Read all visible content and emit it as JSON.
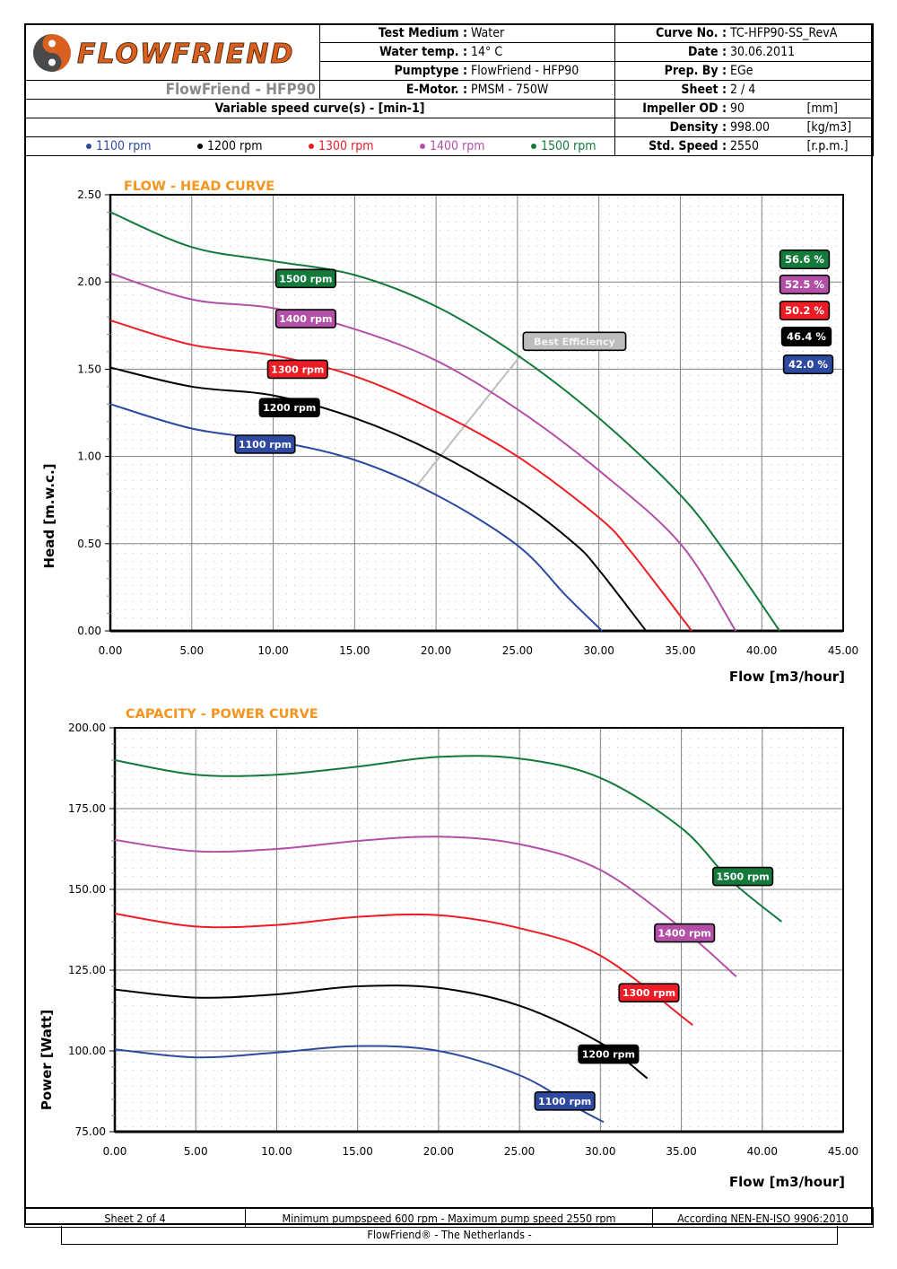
{
  "header": {
    "brand": "FLOWFRIEND",
    "model_name": "FlowFriend - HFP90",
    "test_medium_label": "Test Medium :",
    "test_medium_value": "Water",
    "water_temp_label": "Water temp. :",
    "water_temp_value": "14° C",
    "pumptype_label": "Pumptype :",
    "pumptype_value": "FlowFriend - HFP90",
    "emotor_label": "E-Motor. :",
    "emotor_value": "PMSM - 750W",
    "curve_no_label": "Curve No. :",
    "curve_no_value": "TC-HFP90-SS_RevA",
    "date_label": "Date :",
    "date_value": "30.06.2011",
    "prep_by_label": "Prep. By :",
    "prep_by_value": "EGe",
    "sheet_label": "Sheet :",
    "sheet_value": "2 / 4",
    "variable_speed_label": "Variable speed curve(s) -  [min-1]",
    "impeller_label": "Impeller OD :",
    "impeller_value": "90",
    "impeller_unit": "[mm]",
    "density_label": "Density :",
    "density_value": "998.00",
    "density_unit": "[kg/m3]",
    "std_speed_label": "Std. Speed :",
    "std_speed_value": "2550",
    "std_speed_unit": "[r.p.m.]",
    "legend": [
      {
        "label": "1100 rpm",
        "color": "#2e4aa0"
      },
      {
        "label": "1200 rpm",
        "color": "#000000"
      },
      {
        "label": "1300 rpm",
        "color": "#ee1c24"
      },
      {
        "label": "1400 rpm",
        "color": "#b44fa8"
      },
      {
        "label": "1500 rpm",
        "color": "#137a3c"
      }
    ]
  },
  "colors": {
    "title_orange": "#f7941d",
    "best_eff_gray": "#bdbdbd",
    "grid": "#808080"
  },
  "chart_data": [
    {
      "type": "line",
      "title": "FLOW - HEAD CURVE",
      "xlabel": "Flow [m3/hour]",
      "ylabel": "Head [m.w.c.]",
      "xlim": [
        0,
        45
      ],
      "ylim": [
        0,
        2.5
      ],
      "xticks": [
        0,
        5,
        10,
        15,
        20,
        25,
        30,
        35,
        40,
        45
      ],
      "xtick_labels": [
        "0.00",
        "5.00",
        "10.00",
        "15.00",
        "20.00",
        "25.00",
        "30.00",
        "35.00",
        "40.00",
        "45.00"
      ],
      "yticks": [
        0,
        0.5,
        1.0,
        1.5,
        2.0,
        2.5
      ],
      "ytick_labels": [
        "0.00",
        "0.50",
        "1.00",
        "1.50",
        "2.00",
        "2.50"
      ],
      "grid": true,
      "series": [
        {
          "name": "1500 rpm",
          "color": "#137a3c",
          "label_at": [
            12.0,
            2.02
          ],
          "x": [
            0,
            5,
            10,
            15,
            20,
            25,
            30,
            35,
            38,
            41.1
          ],
          "y": [
            2.4,
            2.2,
            2.12,
            2.04,
            1.86,
            1.58,
            1.22,
            0.78,
            0.42,
            0
          ]
        },
        {
          "name": "1400 rpm",
          "color": "#b44fa8",
          "label_at": [
            12.0,
            1.79
          ],
          "x": [
            0,
            5,
            10,
            15,
            20,
            25,
            30,
            35,
            38.4
          ],
          "y": [
            2.05,
            1.9,
            1.85,
            1.73,
            1.55,
            1.27,
            0.92,
            0.5,
            0
          ]
        },
        {
          "name": "1300 rpm",
          "color": "#ee1c24",
          "label_at": [
            11.5,
            1.5
          ],
          "x": [
            0,
            5,
            10,
            15,
            20,
            25,
            30,
            32,
            35.7
          ],
          "y": [
            1.78,
            1.64,
            1.58,
            1.46,
            1.26,
            1.0,
            0.65,
            0.45,
            0
          ]
        },
        {
          "name": "1200 rpm",
          "color": "#000000",
          "label_at": [
            11.0,
            1.28
          ],
          "x": [
            0,
            5,
            10,
            15,
            20,
            25,
            28.5,
            30,
            32.9
          ],
          "y": [
            1.51,
            1.4,
            1.35,
            1.22,
            1.02,
            0.75,
            0.5,
            0.35,
            0
          ]
        },
        {
          "name": "1100 rpm",
          "color": "#2e4aa0",
          "label_at": [
            9.5,
            1.07
          ],
          "x": [
            0,
            5,
            10,
            15,
            20,
            25,
            28,
            30.2
          ],
          "y": [
            1.3,
            1.16,
            1.09,
            0.98,
            0.78,
            0.49,
            0.2,
            0
          ]
        }
      ],
      "best_efficiency": {
        "label": "Best Efficiency",
        "x": [
          18.8,
          25.2
        ],
        "y": [
          0.83,
          1.58
        ],
        "label_at": [
          28.5,
          1.66
        ]
      },
      "efficiency_badges": [
        {
          "label": "56.6 %",
          "color": "#137a3c"
        },
        {
          "label": "52.5 %",
          "color": "#b44fa8"
        },
        {
          "label": "50.2 %",
          "color": "#ee1c24"
        },
        {
          "label": "46.4 %",
          "color": "#000000"
        },
        {
          "label": "42.0 %",
          "color": "#2e4aa0"
        }
      ]
    },
    {
      "type": "line",
      "title": "CAPACITY - POWER CURVE",
      "xlabel": "Flow [m3/hour]",
      "ylabel": "Power [Watt]",
      "xlim": [
        0,
        45
      ],
      "ylim": [
        75,
        200
      ],
      "xticks": [
        0,
        5,
        10,
        15,
        20,
        25,
        30,
        35,
        40,
        45
      ],
      "xtick_labels": [
        "0.00",
        "5.00",
        "10.00",
        "15.00",
        "20.00",
        "25.00",
        "30.00",
        "35.00",
        "40.00",
        "45.00"
      ],
      "yticks": [
        75,
        100,
        125,
        150,
        175,
        200
      ],
      "ytick_labels": [
        "75.00",
        "100.00",
        "125.00",
        "150.00",
        "175.00",
        "200.00"
      ],
      "grid": true,
      "series": [
        {
          "name": "1500 rpm",
          "color": "#137a3c",
          "label_at": [
            38.8,
            154
          ],
          "x": [
            0,
            5,
            10,
            15,
            20,
            25,
            30,
            35,
            38,
            41.2
          ],
          "y": [
            190,
            185.5,
            185.5,
            188,
            191,
            190.5,
            184.5,
            169,
            153,
            140
          ]
        },
        {
          "name": "1400 rpm",
          "color": "#b44fa8",
          "label_at": [
            35.2,
            136.5
          ],
          "x": [
            0,
            5,
            10,
            15,
            20,
            25,
            30,
            35,
            38.4
          ],
          "y": [
            165.3,
            161.8,
            162.5,
            165,
            166.3,
            164,
            156,
            138,
            123
          ]
        },
        {
          "name": "1300 rpm",
          "color": "#ee1c24",
          "label_at": [
            33.0,
            118
          ],
          "x": [
            0,
            5,
            10,
            15,
            20,
            25,
            30,
            35.7
          ],
          "y": [
            142.5,
            138.5,
            139,
            141.5,
            142,
            138,
            129.5,
            108
          ]
        },
        {
          "name": "1200 rpm",
          "color": "#000000",
          "label_at": [
            30.5,
            99
          ],
          "x": [
            0,
            5,
            10,
            15,
            20,
            25,
            30,
            32.9
          ],
          "y": [
            119,
            116.5,
            117.5,
            120,
            119.5,
            114,
            102.5,
            91.5
          ]
        },
        {
          "name": "1100 rpm",
          "color": "#2e4aa0",
          "label_at": [
            27.8,
            84.5
          ],
          "x": [
            0,
            5,
            10,
            15,
            20,
            25,
            28.5,
            30.2
          ],
          "y": [
            100.5,
            98,
            99.5,
            101.5,
            100,
            92.5,
            82.5,
            78
          ]
        }
      ]
    }
  ],
  "footer": {
    "sheet": "Sheet 2 of 4",
    "speed_range": "Minimum pumpspeed 600 rpm - Maximum pump speed 2550 rpm",
    "standard": "According NEN-EN-ISO 9906:2010",
    "company": "FlowFriend®  - The Netherlands -"
  }
}
